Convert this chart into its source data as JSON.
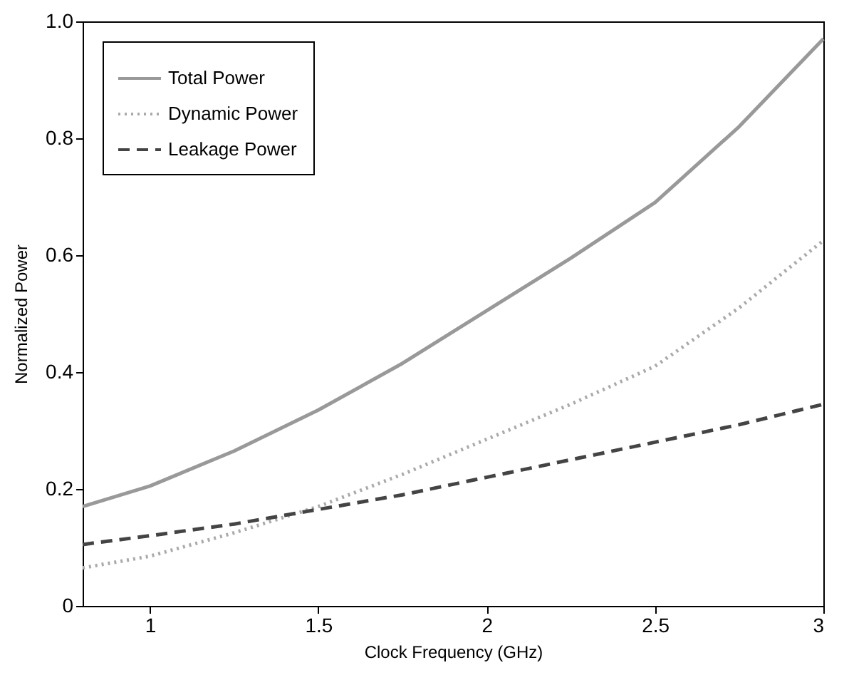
{
  "chart_data": {
    "type": "line",
    "xlabel": "Clock Frequency (GHz)",
    "ylabel": "Normalized Power",
    "x": [
      0.8,
      1.0,
      1.25,
      1.5,
      1.75,
      2.0,
      2.25,
      2.5,
      2.75,
      3.0
    ],
    "series": [
      {
        "name": "Total Power",
        "color": "#999999",
        "line_style": "solid",
        "values": [
          0.17,
          0.205,
          0.265,
          0.335,
          0.415,
          0.505,
          0.595,
          0.69,
          0.82,
          0.97
        ]
      },
      {
        "name": "Dynamic Power",
        "color": "#aaaaaa",
        "line_style": "dotted",
        "values": [
          0.065,
          0.085,
          0.125,
          0.17,
          0.225,
          0.285,
          0.345,
          0.41,
          0.51,
          0.625
        ]
      },
      {
        "name": "Leakage Power",
        "color": "#444444",
        "line_style": "dashed",
        "values": [
          0.105,
          0.12,
          0.14,
          0.165,
          0.19,
          0.22,
          0.25,
          0.28,
          0.31,
          0.345
        ]
      }
    ],
    "xlim": [
      0.8,
      3.0
    ],
    "xticks": [
      1,
      1.5,
      2,
      2.5,
      3
    ],
    "ylim": [
      0,
      1.0
    ],
    "yticks": [
      0,
      0.2,
      0.4,
      0.6,
      0.8,
      {
        "value": 1,
        "label": "1.0"
      }
    ],
    "legend": "top left",
    "grid": false,
    "marker": "none"
  }
}
